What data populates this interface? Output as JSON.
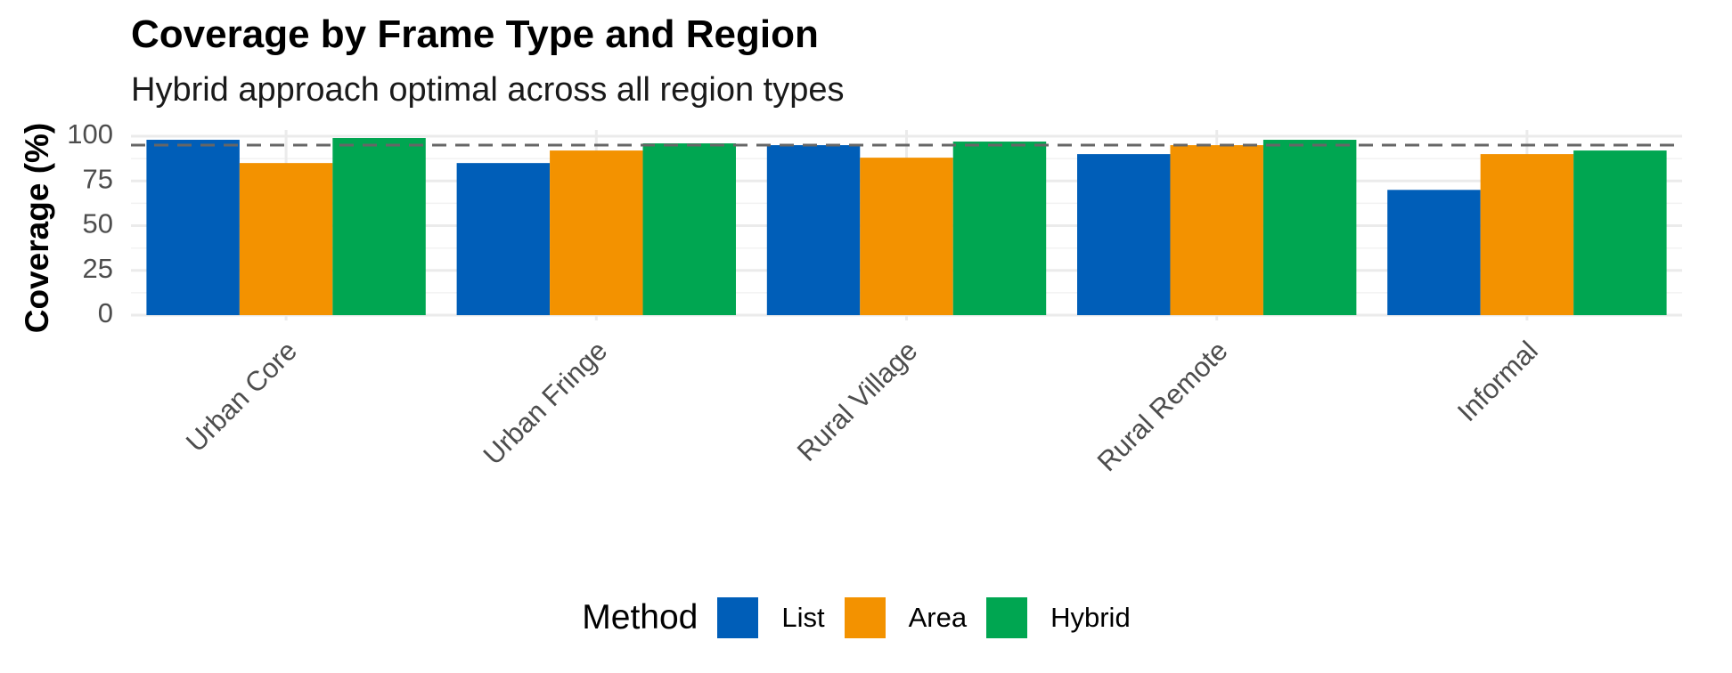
{
  "chart_data": {
    "type": "bar",
    "title": "Coverage by Frame Type and Region",
    "subtitle": "Hybrid approach optimal across all region types",
    "xlabel": "",
    "ylabel": "Coverage (%)",
    "ylim": [
      0,
      100
    ],
    "yticks": [
      0,
      25,
      50,
      75,
      100
    ],
    "grid": true,
    "legend": {
      "title": "Method",
      "position": "bottom"
    },
    "reference_line": {
      "y": 95,
      "style": "dashed"
    },
    "categories": [
      "Urban Core",
      "Urban Fringe",
      "Rural Village",
      "Rural Remote",
      "Informal"
    ],
    "series": [
      {
        "name": "List",
        "color": "#005EB8",
        "values": [
          98,
          85,
          95,
          90,
          70
        ]
      },
      {
        "name": "Area",
        "color": "#F39200",
        "values": [
          85,
          92,
          88,
          95,
          90
        ]
      },
      {
        "name": "Hybrid",
        "color": "#00A651",
        "values": [
          99,
          96,
          97,
          98,
          92
        ]
      }
    ]
  }
}
